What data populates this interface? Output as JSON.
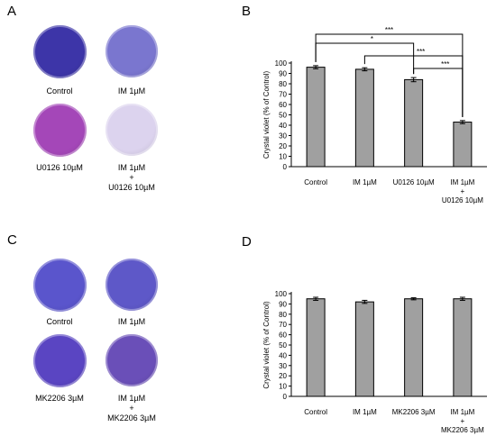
{
  "panels": {
    "A": {
      "letter": "A",
      "wells": [
        {
          "label": "Control",
          "color": "#3d35a8"
        },
        {
          "label": "IM 1µM",
          "color": "#7a76cf"
        },
        {
          "label": "U0126 10µM",
          "color": "#a447b8"
        },
        {
          "label": "IM 1µM\n+\nU0126 10µM",
          "color": "#dcd3ee"
        }
      ]
    },
    "C": {
      "letter": "C",
      "wells": [
        {
          "label": "Control",
          "color": "#5a55cc"
        },
        {
          "label": "IM 1µM",
          "color": "#5e58c8"
        },
        {
          "label": "MK2206 3µM",
          "color": "#5a45c2"
        },
        {
          "label": "IM 1µM\n+\nMK2206 3µM",
          "color": "#6a4fb8"
        }
      ]
    },
    "B": {
      "letter": "B"
    },
    "D": {
      "letter": "D"
    }
  },
  "chart_data": [
    {
      "type": "bar",
      "panel": "B",
      "categories": [
        "Control",
        "IM 1µM",
        "U0126 10µM",
        "IM 1µM\n+\nU0126 10µM"
      ],
      "values": [
        96,
        94,
        84,
        43
      ],
      "errors": [
        1.5,
        1.5,
        2,
        1.5
      ],
      "ylabel": "Crystal violet (% of Control)",
      "ylim": [
        0,
        100
      ],
      "yticks": [
        0,
        10,
        20,
        30,
        40,
        50,
        60,
        70,
        80,
        90,
        100
      ],
      "bar_color": "#a0a0a0",
      "significance": [
        {
          "from": 0,
          "to": 3,
          "label": "***"
        },
        {
          "from": 0,
          "to": 2,
          "label": "*"
        },
        {
          "from": 1,
          "to": 3,
          "label": "***"
        },
        {
          "from": 2,
          "to": 3,
          "label": "***"
        }
      ]
    },
    {
      "type": "bar",
      "panel": "D",
      "categories": [
        "Control",
        "IM 1µM",
        "MK2206 3µM",
        "IM 1µM\n+\nMK2206 3µM"
      ],
      "values": [
        95,
        92,
        95,
        95
      ],
      "errors": [
        1.5,
        1.5,
        1,
        1.5
      ],
      "ylabel": "Crystal violet (% of Control)",
      "ylim": [
        0,
        100
      ],
      "yticks": [
        0,
        10,
        20,
        30,
        40,
        50,
        60,
        70,
        80,
        90,
        100
      ],
      "bar_color": "#a0a0a0",
      "significance": []
    }
  ]
}
